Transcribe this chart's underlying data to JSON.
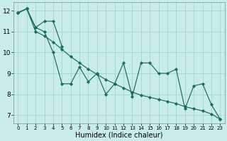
{
  "xlabel": "Humidex (Indice chaleur)",
  "bg_color": "#c8ece8",
  "grid_color": "#a8d8d4",
  "line_color": "#1a6b5a",
  "x_all": [
    0,
    1,
    2,
    3,
    4,
    5,
    6,
    7,
    8,
    9,
    10,
    11,
    12,
    13,
    14,
    15,
    16,
    17,
    18,
    19,
    20,
    21,
    22,
    23
  ],
  "series_zigzag": [
    11.9,
    12.1,
    11.2,
    11.0,
    10.0,
    8.5,
    8.5,
    9.3,
    8.6,
    9.0,
    8.0,
    8.5,
    9.5,
    7.9,
    9.5,
    9.5,
    9.0,
    9.0,
    9.2,
    7.3,
    8.4,
    8.5,
    7.5,
    6.8
  ],
  "series_upper_x": [
    0,
    1,
    2,
    3,
    4,
    5
  ],
  "series_upper_y": [
    11.9,
    12.1,
    11.2,
    11.5,
    11.5,
    10.3
  ],
  "series_lower_y": [
    11.9,
    12.1,
    11.0,
    10.8,
    10.5,
    10.15,
    9.8,
    9.5,
    9.2,
    8.95,
    8.7,
    8.5,
    8.3,
    8.1,
    7.95,
    7.85,
    7.75,
    7.65,
    7.55,
    7.4,
    7.3,
    7.2,
    7.05,
    6.8
  ],
  "ylim": [
    6.6,
    12.4
  ],
  "xlim": [
    -0.5,
    23.5
  ],
  "yticks": [
    7,
    8,
    9,
    10,
    11,
    12
  ],
  "xticks": [
    0,
    1,
    2,
    3,
    4,
    5,
    6,
    7,
    8,
    9,
    10,
    11,
    12,
    13,
    14,
    15,
    16,
    17,
    18,
    19,
    20,
    21,
    22,
    23
  ],
  "tick_fontsize_x": 5.0,
  "tick_fontsize_y": 6.5,
  "xlabel_fontsize": 7.0,
  "linewidth": 0.85,
  "markersize": 2.3
}
